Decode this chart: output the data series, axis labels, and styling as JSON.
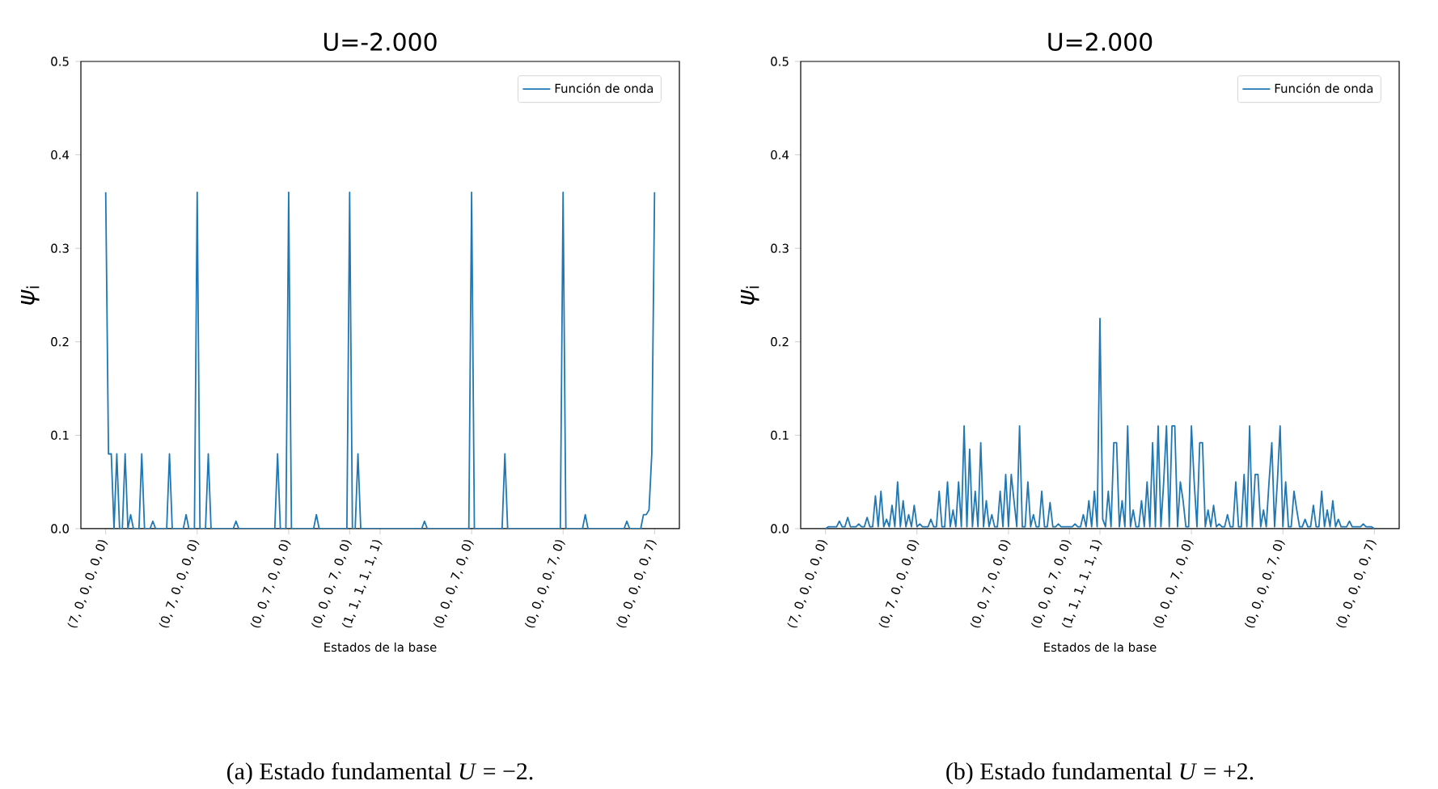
{
  "chart_data": [
    {
      "type": "line",
      "title": "U=-2.000",
      "xlabel": "Estados de la base",
      "ylabel": "*ψ*$_{i}$",
      "legend": "top right",
      "ylim": [
        0,
        0.5
      ],
      "yticks": [
        {
          "value": 0,
          "label": "0.0"
        },
        0.1,
        0.2,
        0.3,
        0.4,
        0.5
      ],
      "annotations": [
        "(a) Estado fundamental *U* = −2."
      ],
      "categories": [
        "(7, 0, 0, 0, 0, 0)",
        null,
        null,
        null,
        null,
        null,
        null,
        null,
        null,
        null,
        null,
        null,
        null,
        null,
        null,
        null,
        null,
        null,
        null,
        null,
        null,
        null,
        null,
        null,
        null,
        null,
        null,
        null,
        null,
        null,
        null,
        null,
        null,
        "(0, 7, 0, 0, 0, 0)",
        null,
        null,
        null,
        null,
        null,
        null,
        null,
        null,
        null,
        null,
        null,
        null,
        null,
        null,
        null,
        null,
        null,
        null,
        null,
        null,
        null,
        null,
        null,
        null,
        null,
        null,
        null,
        null,
        null,
        null,
        null,
        null,
        "(0, 0, 7, 0, 0, 0)",
        null,
        null,
        null,
        null,
        null,
        null,
        null,
        null,
        null,
        null,
        null,
        null,
        null,
        null,
        null,
        null,
        null,
        null,
        null,
        null,
        null,
        "(0, 0, 0, 7, 0, 0)",
        null,
        null,
        null,
        null,
        null,
        null,
        null,
        null,
        null,
        null,
        "(1, 1, 1, 1, 1, 1)",
        null,
        null,
        null,
        null,
        null,
        null,
        null,
        null,
        null,
        null,
        null,
        null,
        null,
        null,
        null,
        null,
        null,
        null,
        null,
        null,
        null,
        null,
        null,
        null,
        null,
        null,
        null,
        null,
        null,
        null,
        null,
        null,
        "(0, 0, 0, 7, 0, 0)",
        null,
        null,
        null,
        null,
        null,
        null,
        null,
        null,
        null,
        null,
        null,
        null,
        null,
        null,
        null,
        null,
        null,
        null,
        null,
        null,
        null,
        null,
        null,
        null,
        null,
        null,
        null,
        null,
        null,
        null,
        null,
        null,
        "(0, 0, 0, 0, 7, 0)",
        null,
        null,
        null,
        null,
        null,
        null,
        null,
        null,
        null,
        null,
        null,
        null,
        null,
        null,
        null,
        null,
        null,
        null,
        null,
        null,
        null,
        null,
        null,
        null,
        null,
        null,
        null,
        null,
        null,
        null,
        null,
        null,
        "(0, 0, 0, 0, 0, 7)"
      ],
      "series": [
        {
          "name": "Función de onda",
          "color": "#1f77b4",
          "values": [
            0.36,
            0.08,
            0.08,
            0,
            0.08,
            0,
            0,
            0.08,
            0,
            0.015,
            0,
            0,
            0,
            0.08,
            0,
            0,
            0,
            0.008,
            0,
            0,
            0,
            0,
            0,
            0.08,
            0,
            0,
            0,
            0,
            0,
            0.015,
            0,
            0,
            0,
            0.36,
            0,
            0,
            0,
            0.08,
            0,
            0,
            0,
            0,
            0,
            0,
            0,
            0,
            0,
            0.008,
            0,
            0,
            0,
            0,
            0,
            0,
            0,
            0,
            0,
            0,
            0,
            0,
            0,
            0,
            0.08,
            0,
            0,
            0,
            0.36,
            0,
            0,
            0,
            0,
            0,
            0,
            0,
            0,
            0,
            0.015,
            0,
            0,
            0,
            0,
            0,
            0,
            0,
            0,
            0,
            0,
            0,
            0.36,
            0,
            0,
            0.08,
            0,
            0,
            0,
            0,
            0,
            0,
            0,
            0,
            0,
            0,
            0,
            0,
            0,
            0,
            0,
            0,
            0,
            0,
            0,
            0,
            0,
            0,
            0,
            0.008,
            0,
            0,
            0,
            0,
            0,
            0,
            0,
            0,
            0,
            0,
            0,
            0,
            0,
            0,
            0,
            0,
            0.36,
            0,
            0,
            0,
            0,
            0,
            0,
            0,
            0,
            0,
            0,
            0,
            0.08,
            0,
            0,
            0,
            0,
            0,
            0,
            0,
            0,
            0,
            0,
            0,
            0,
            0,
            0,
            0,
            0,
            0,
            0,
            0,
            0,
            0.36,
            0,
            0,
            0,
            0,
            0,
            0,
            0,
            0.015,
            0,
            0,
            0,
            0,
            0,
            0,
            0,
            0,
            0,
            0,
            0,
            0,
            0,
            0,
            0.008,
            0,
            0,
            0,
            0,
            0,
            0.015,
            0.015,
            0.02,
            0.08,
            0.36
          ]
        }
      ]
    },
    {
      "type": "line",
      "title": "U=2.000",
      "xlabel": "Estados de la base",
      "ylabel": "*ψ*$_{i}$",
      "legend": "top right",
      "ylim": [
        0,
        0.5
      ],
      "yticks": [
        {
          "value": 0,
          "label": "0.0"
        },
        0.1,
        0.2,
        0.3,
        0.4,
        0.5
      ],
      "annotations": [
        "(b) Estado fundamental *U* = +2."
      ],
      "categories": [
        "(7, 0, 0, 0, 0, 0)",
        null,
        null,
        null,
        null,
        null,
        null,
        null,
        null,
        null,
        null,
        null,
        null,
        null,
        null,
        null,
        null,
        null,
        null,
        null,
        null,
        null,
        null,
        null,
        null,
        null,
        null,
        null,
        null,
        null,
        null,
        null,
        null,
        "(0, 7, 0, 0, 0, 0)",
        null,
        null,
        null,
        null,
        null,
        null,
        null,
        null,
        null,
        null,
        null,
        null,
        null,
        null,
        null,
        null,
        null,
        null,
        null,
        null,
        null,
        null,
        null,
        null,
        null,
        null,
        null,
        null,
        null,
        null,
        null,
        null,
        "(0, 0, 7, 0, 0, 0)",
        null,
        null,
        null,
        null,
        null,
        null,
        null,
        null,
        null,
        null,
        null,
        null,
        null,
        null,
        null,
        null,
        null,
        null,
        null,
        null,
        null,
        "(0, 0, 0, 7, 0, 0)",
        null,
        null,
        null,
        null,
        null,
        null,
        null,
        null,
        null,
        null,
        "(1, 1, 1, 1, 1, 1)",
        null,
        null,
        null,
        null,
        null,
        null,
        null,
        null,
        null,
        null,
        null,
        null,
        null,
        null,
        null,
        null,
        null,
        null,
        null,
        null,
        null,
        null,
        null,
        null,
        null,
        null,
        null,
        null,
        null,
        null,
        null,
        null,
        "(0, 0, 0, 7, 0, 0)",
        null,
        null,
        null,
        null,
        null,
        null,
        null,
        null,
        null,
        null,
        null,
        null,
        null,
        null,
        null,
        null,
        null,
        null,
        null,
        null,
        null,
        null,
        null,
        null,
        null,
        null,
        null,
        null,
        null,
        null,
        null,
        null,
        "(0, 0, 0, 0, 7, 0)",
        null,
        null,
        null,
        null,
        null,
        null,
        null,
        null,
        null,
        null,
        null,
        null,
        null,
        null,
        null,
        null,
        null,
        null,
        null,
        null,
        null,
        null,
        null,
        null,
        null,
        null,
        null,
        null,
        null,
        null,
        null,
        null,
        "(0, 0, 0, 0, 0, 7)"
      ],
      "series": [
        {
          "name": "Función de onda",
          "color": "#1f77b4",
          "values": [
            0,
            0.002,
            0.002,
            0.002,
            0.002,
            0.008,
            0.002,
            0.002,
            0.012,
            0.002,
            0.002,
            0.002,
            0.005,
            0.002,
            0.002,
            0.012,
            0.002,
            0.002,
            0.035,
            0.002,
            0.04,
            0.002,
            0.01,
            0.002,
            0.025,
            0.002,
            0.05,
            0.002,
            0.03,
            0.002,
            0.015,
            0.002,
            0.025,
            0.002,
            0.005,
            0.002,
            0.002,
            0.002,
            0.01,
            0.002,
            0.002,
            0.04,
            0.002,
            0.002,
            0.05,
            0.002,
            0.02,
            0.002,
            0.05,
            0.002,
            0.11,
            0.002,
            0.085,
            0.002,
            0.04,
            0.002,
            0.092,
            0.002,
            0.03,
            0.002,
            0.015,
            0.002,
            0.002,
            0.04,
            0.002,
            0.058,
            0.002,
            0.058,
            0.03,
            0.002,
            0.11,
            0.002,
            0.002,
            0.05,
            0.002,
            0.015,
            0.002,
            0.002,
            0.04,
            0.002,
            0.002,
            0.028,
            0.002,
            0.002,
            0.005,
            0.002,
            0.002,
            0.002,
            0.002,
            0.002,
            0.005,
            0.002,
            0.002,
            0.015,
            0.002,
            0.03,
            0.002,
            0.04,
            0.002,
            0.225,
            0.01,
            0.002,
            0.04,
            0.002,
            0.092,
            0.092,
            0.002,
            0.03,
            0.002,
            0.11,
            0.002,
            0.02,
            0.002,
            0.002,
            0.03,
            0.002,
            0.05,
            0.002,
            0.092,
            0.002,
            0.11,
            0.002,
            0.05,
            0.11,
            0.002,
            0.11,
            0.11,
            0.002,
            0.05,
            0.03,
            0.002,
            0.002,
            0.11,
            0.05,
            0.002,
            0.092,
            0.092,
            0.002,
            0.02,
            0.002,
            0.025,
            0.002,
            0.005,
            0.002,
            0.002,
            0.015,
            0.002,
            0.002,
            0.05,
            0.002,
            0.002,
            0.058,
            0.002,
            0.11,
            0.002,
            0.058,
            0.058,
            0.002,
            0.02,
            0.002,
            0.05,
            0.092,
            0.002,
            0.05,
            0.11,
            0.002,
            0.05,
            0.002,
            0.002,
            0.04,
            0.02,
            0.002,
            0.002,
            0.01,
            0.002,
            0.002,
            0.025,
            0.002,
            0.002,
            0.04,
            0.002,
            0.02,
            0.002,
            0.03,
            0.002,
            0.01,
            0.002,
            0.002,
            0.002,
            0.008,
            0.002,
            0.002,
            0.002,
            0.002,
            0.005,
            0.002,
            0.002,
            0.002,
            0
          ]
        }
      ]
    }
  ]
}
